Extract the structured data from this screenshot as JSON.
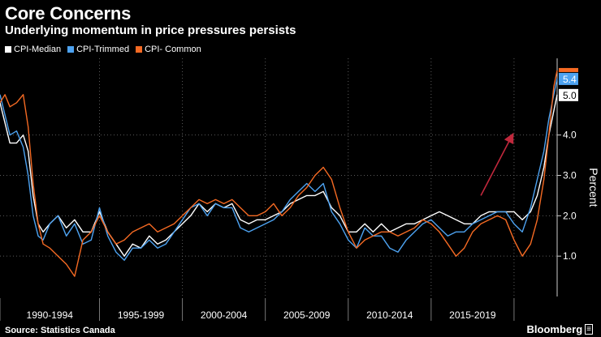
{
  "header": {
    "title": "Core Concerns",
    "subtitle": "Underlying momentum in price pressures persists"
  },
  "footer": {
    "source": "Source: Statistics Canada",
    "brand": "Bloomberg"
  },
  "chart_data": {
    "type": "line",
    "title": "Core Concerns",
    "subtitle": "Underlying momentum in price pressures persists",
    "ylabel": "Percent",
    "xlabel": "",
    "ylim": [
      0.0,
      5.9
    ],
    "xlim": [
      1989.0,
      2022.6
    ],
    "yticks": [
      1.0,
      2.0,
      3.0,
      4.0
    ],
    "ytick_labels": [
      "1.0",
      "2.0",
      "3.0",
      "4.0"
    ],
    "x_groups": [
      "1990-1994",
      "1995-1999",
      "2000-2004",
      "2005-2009",
      "2010-2014",
      "2015-2019"
    ],
    "x_group_bounds": [
      1989.0,
      1995.0,
      2000.0,
      2005.0,
      2010.0,
      2015.0,
      2020.0
    ],
    "legend_position": "top-left",
    "series": [
      {
        "name": "CPI-Median",
        "color": "#ffffff",
        "end_label": "5.0",
        "points": [
          [
            1989.0,
            4.8
          ],
          [
            1989.3,
            4.3
          ],
          [
            1989.6,
            3.8
          ],
          [
            1990.0,
            3.8
          ],
          [
            1990.4,
            4.0
          ],
          [
            1990.7,
            3.6
          ],
          [
            1991.0,
            2.5
          ],
          [
            1991.3,
            1.8
          ],
          [
            1991.6,
            1.6
          ],
          [
            1992.0,
            1.8
          ],
          [
            1992.5,
            2.0
          ],
          [
            1993.0,
            1.7
          ],
          [
            1993.5,
            1.9
          ],
          [
            1994.0,
            1.6
          ],
          [
            1994.5,
            1.6
          ],
          [
            1995.0,
            2.1
          ],
          [
            1995.5,
            1.6
          ],
          [
            1996.0,
            1.3
          ],
          [
            1996.5,
            1.0
          ],
          [
            1997.0,
            1.3
          ],
          [
            1997.5,
            1.2
          ],
          [
            1998.0,
            1.5
          ],
          [
            1998.5,
            1.3
          ],
          [
            1999.0,
            1.4
          ],
          [
            1999.5,
            1.6
          ],
          [
            2000.0,
            1.8
          ],
          [
            2000.5,
            2.0
          ],
          [
            2001.0,
            2.3
          ],
          [
            2001.5,
            2.1
          ],
          [
            2002.0,
            2.3
          ],
          [
            2002.5,
            2.2
          ],
          [
            2003.0,
            2.3
          ],
          [
            2003.5,
            1.9
          ],
          [
            2004.0,
            1.8
          ],
          [
            2004.5,
            1.9
          ],
          [
            2005.0,
            1.9
          ],
          [
            2005.5,
            2.0
          ],
          [
            2006.0,
            2.1
          ],
          [
            2006.5,
            2.3
          ],
          [
            2007.0,
            2.4
          ],
          [
            2007.5,
            2.5
          ],
          [
            2008.0,
            2.5
          ],
          [
            2008.5,
            2.6
          ],
          [
            2009.0,
            2.2
          ],
          [
            2009.5,
            2.0
          ],
          [
            2010.0,
            1.6
          ],
          [
            2010.5,
            1.6
          ],
          [
            2011.0,
            1.8
          ],
          [
            2011.5,
            1.6
          ],
          [
            2012.0,
            1.8
          ],
          [
            2012.5,
            1.6
          ],
          [
            2013.0,
            1.7
          ],
          [
            2013.5,
            1.8
          ],
          [
            2014.0,
            1.8
          ],
          [
            2014.5,
            1.9
          ],
          [
            2015.0,
            2.0
          ],
          [
            2015.5,
            2.1
          ],
          [
            2016.0,
            2.0
          ],
          [
            2016.5,
            1.9
          ],
          [
            2017.0,
            1.8
          ],
          [
            2017.5,
            1.8
          ],
          [
            2018.0,
            2.0
          ],
          [
            2018.5,
            2.1
          ],
          [
            2019.0,
            2.1
          ],
          [
            2019.5,
            2.1
          ],
          [
            2020.0,
            2.1
          ],
          [
            2020.5,
            1.9
          ],
          [
            2021.0,
            2.1
          ],
          [
            2021.4,
            2.5
          ],
          [
            2021.8,
            3.2
          ],
          [
            2022.1,
            4.0
          ],
          [
            2022.4,
            4.6
          ],
          [
            2022.6,
            5.0
          ]
        ]
      },
      {
        "name": "CPI-Trimmed",
        "color": "#4da2f0",
        "end_label": "5.4",
        "points": [
          [
            1989.0,
            5.0
          ],
          [
            1989.3,
            4.5
          ],
          [
            1989.6,
            4.0
          ],
          [
            1990.0,
            4.1
          ],
          [
            1990.4,
            3.7
          ],
          [
            1990.7,
            3.0
          ],
          [
            1991.0,
            2.0
          ],
          [
            1991.3,
            1.5
          ],
          [
            1991.6,
            1.4
          ],
          [
            1992.0,
            1.8
          ],
          [
            1992.5,
            2.0
          ],
          [
            1993.0,
            1.5
          ],
          [
            1993.5,
            1.8
          ],
          [
            1994.0,
            1.3
          ],
          [
            1994.5,
            1.4
          ],
          [
            1995.0,
            2.2
          ],
          [
            1995.5,
            1.5
          ],
          [
            1996.0,
            1.1
          ],
          [
            1996.5,
            0.9
          ],
          [
            1997.0,
            1.2
          ],
          [
            1997.5,
            1.2
          ],
          [
            1998.0,
            1.4
          ],
          [
            1998.5,
            1.2
          ],
          [
            1999.0,
            1.3
          ],
          [
            1999.5,
            1.6
          ],
          [
            2000.0,
            1.9
          ],
          [
            2000.5,
            2.2
          ],
          [
            2001.0,
            2.3
          ],
          [
            2001.5,
            2.0
          ],
          [
            2002.0,
            2.3
          ],
          [
            2002.5,
            2.2
          ],
          [
            2003.0,
            2.2
          ],
          [
            2003.5,
            1.7
          ],
          [
            2004.0,
            1.6
          ],
          [
            2004.5,
            1.7
          ],
          [
            2005.0,
            1.8
          ],
          [
            2005.5,
            1.9
          ],
          [
            2006.0,
            2.1
          ],
          [
            2006.5,
            2.4
          ],
          [
            2007.0,
            2.6
          ],
          [
            2007.5,
            2.8
          ],
          [
            2008.0,
            2.6
          ],
          [
            2008.5,
            2.8
          ],
          [
            2009.0,
            2.1
          ],
          [
            2009.5,
            1.8
          ],
          [
            2010.0,
            1.4
          ],
          [
            2010.5,
            1.2
          ],
          [
            2011.0,
            1.7
          ],
          [
            2011.5,
            1.5
          ],
          [
            2012.0,
            1.5
          ],
          [
            2012.5,
            1.2
          ],
          [
            2013.0,
            1.1
          ],
          [
            2013.5,
            1.4
          ],
          [
            2014.0,
            1.6
          ],
          [
            2014.5,
            1.8
          ],
          [
            2015.0,
            1.9
          ],
          [
            2015.5,
            1.7
          ],
          [
            2016.0,
            1.5
          ],
          [
            2016.5,
            1.6
          ],
          [
            2017.0,
            1.6
          ],
          [
            2017.5,
            1.8
          ],
          [
            2018.0,
            1.9
          ],
          [
            2018.5,
            2.0
          ],
          [
            2019.0,
            2.1
          ],
          [
            2019.5,
            2.1
          ],
          [
            2020.0,
            1.8
          ],
          [
            2020.5,
            1.6
          ],
          [
            2021.0,
            2.2
          ],
          [
            2021.4,
            2.9
          ],
          [
            2021.8,
            3.6
          ],
          [
            2022.1,
            4.4
          ],
          [
            2022.4,
            5.0
          ],
          [
            2022.6,
            5.4
          ]
        ]
      },
      {
        "name": "CPI- Common",
        "color": "#f56a23",
        "end_label": "",
        "points": [
          [
            1989.0,
            4.8
          ],
          [
            1989.3,
            5.0
          ],
          [
            1989.6,
            4.7
          ],
          [
            1990.0,
            4.8
          ],
          [
            1990.4,
            5.0
          ],
          [
            1990.7,
            4.2
          ],
          [
            1991.0,
            2.8
          ],
          [
            1991.3,
            1.8
          ],
          [
            1991.6,
            1.3
          ],
          [
            1992.0,
            1.2
          ],
          [
            1992.5,
            1.0
          ],
          [
            1993.0,
            0.8
          ],
          [
            1993.5,
            0.5
          ],
          [
            1994.0,
            1.4
          ],
          [
            1994.5,
            1.6
          ],
          [
            1995.0,
            2.0
          ],
          [
            1995.5,
            1.6
          ],
          [
            1996.0,
            1.3
          ],
          [
            1996.5,
            1.4
          ],
          [
            1997.0,
            1.6
          ],
          [
            1997.5,
            1.7
          ],
          [
            1998.0,
            1.8
          ],
          [
            1998.5,
            1.6
          ],
          [
            1999.0,
            1.7
          ],
          [
            1999.5,
            1.8
          ],
          [
            2000.0,
            2.0
          ],
          [
            2000.5,
            2.2
          ],
          [
            2001.0,
            2.4
          ],
          [
            2001.5,
            2.3
          ],
          [
            2002.0,
            2.4
          ],
          [
            2002.5,
            2.3
          ],
          [
            2003.0,
            2.4
          ],
          [
            2003.5,
            2.2
          ],
          [
            2004.0,
            2.0
          ],
          [
            2004.5,
            2.0
          ],
          [
            2005.0,
            2.1
          ],
          [
            2005.5,
            2.3
          ],
          [
            2006.0,
            2.0
          ],
          [
            2006.5,
            2.2
          ],
          [
            2007.0,
            2.5
          ],
          [
            2007.5,
            2.7
          ],
          [
            2008.0,
            3.0
          ],
          [
            2008.5,
            3.2
          ],
          [
            2009.0,
            2.9
          ],
          [
            2009.5,
            2.2
          ],
          [
            2010.0,
            1.6
          ],
          [
            2010.5,
            1.2
          ],
          [
            2011.0,
            1.4
          ],
          [
            2011.5,
            1.5
          ],
          [
            2012.0,
            1.6
          ],
          [
            2012.5,
            1.6
          ],
          [
            2013.0,
            1.5
          ],
          [
            2013.5,
            1.6
          ],
          [
            2014.0,
            1.7
          ],
          [
            2014.5,
            1.9
          ],
          [
            2015.0,
            1.8
          ],
          [
            2015.5,
            1.6
          ],
          [
            2016.0,
            1.3
          ],
          [
            2016.5,
            1.0
          ],
          [
            2017.0,
            1.2
          ],
          [
            2017.5,
            1.6
          ],
          [
            2018.0,
            1.8
          ],
          [
            2018.5,
            1.9
          ],
          [
            2019.0,
            2.0
          ],
          [
            2019.5,
            1.9
          ],
          [
            2020.0,
            1.4
          ],
          [
            2020.5,
            1.0
          ],
          [
            2021.0,
            1.3
          ],
          [
            2021.4,
            1.9
          ],
          [
            2021.8,
            2.9
          ],
          [
            2022.1,
            4.0
          ],
          [
            2022.4,
            5.2
          ],
          [
            2022.6,
            5.6
          ]
        ]
      }
    ],
    "annotations": [
      {
        "type": "arrow",
        "color": "#c0283c",
        "from": [
          2018.0,
          2.5
        ],
        "to": [
          2019.9,
          4.0
        ]
      }
    ]
  }
}
